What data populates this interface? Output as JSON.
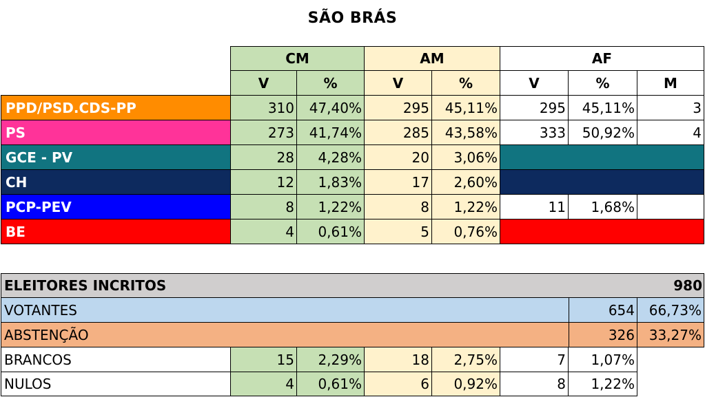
{
  "title": "SÃO BRÁS",
  "headers": {
    "cm": "CM",
    "am": "AM",
    "af": "AF",
    "v": "V",
    "pct": "%",
    "m": "M"
  },
  "parties": [
    {
      "name": "PPD/PSD.CDS-PP",
      "color": "#ff8c00",
      "cm_v": "310",
      "cm_p": "47,40%",
      "am_v": "295",
      "am_p": "45,11%",
      "af_v": "295",
      "af_p": "45,11%",
      "af_m": "3",
      "af_fill": ""
    },
    {
      "name": "PS",
      "color": "#ff3399",
      "cm_v": "273",
      "cm_p": "41,74%",
      "am_v": "285",
      "am_p": "43,58%",
      "af_v": "333",
      "af_p": "50,92%",
      "af_m": "4",
      "af_fill": ""
    },
    {
      "name": "GCE - PV",
      "color": "#117480",
      "cm_v": "28",
      "cm_p": "4,28%",
      "am_v": "20",
      "am_p": "3,06%",
      "af_v": "",
      "af_p": "",
      "af_m": "",
      "af_fill": "#117480"
    },
    {
      "name": "CH",
      "color": "#0d2a5e",
      "cm_v": "12",
      "cm_p": "1,83%",
      "am_v": "17",
      "am_p": "2,60%",
      "af_v": "",
      "af_p": "",
      "af_m": "",
      "af_fill": "#0d2a5e"
    },
    {
      "name": "PCP-PEV",
      "color": "#0000ff",
      "cm_v": "8",
      "cm_p": "1,22%",
      "am_v": "8",
      "am_p": "1,22%",
      "af_v": "11",
      "af_p": "1,68%",
      "af_m": "",
      "af_fill": ""
    },
    {
      "name": "BE",
      "color": "#ff0000",
      "cm_v": "4",
      "cm_p": "0,61%",
      "am_v": "5",
      "am_p": "0,76%",
      "af_v": "",
      "af_p": "",
      "af_m": "",
      "af_fill": "#ff0000"
    }
  ],
  "summary": {
    "inscritos": {
      "label": "ELEITORES INCRITOS",
      "value": "980"
    },
    "votantes": {
      "label": "VOTANTES",
      "value": "654",
      "pct": "66,73%"
    },
    "abstencao": {
      "label": "ABSTENÇÃO",
      "value": "326",
      "pct": "33,27%"
    },
    "brancos": {
      "label": "BRANCOS",
      "cm_v": "15",
      "cm_p": "2,29%",
      "am_v": "18",
      "am_p": "2,75%",
      "af_v": "7",
      "af_p": "1,07%"
    },
    "nulos": {
      "label": "NULOS",
      "cm_v": "4",
      "cm_p": "0,61%",
      "am_v": "6",
      "am_p": "0,92%",
      "af_v": "8",
      "af_p": "1,22%"
    }
  }
}
